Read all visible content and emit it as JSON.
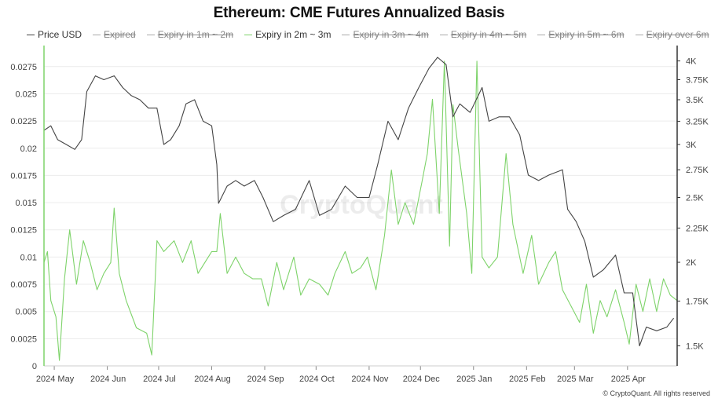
{
  "chart_data": {
    "type": "line",
    "title": "Ethereum: CME Futures Annualized Basis",
    "watermark": "CryptoQuant",
    "credit": "© CryptoQuant. All rights reserved",
    "legend": [
      {
        "name": "Price USD",
        "color": "#444444",
        "visible": true
      },
      {
        "name": "Expired",
        "color": "#666666",
        "visible": false
      },
      {
        "name": "Expiry in 1m ~ 2m",
        "color": "#666666",
        "visible": false
      },
      {
        "name": "Expiry in 2m ~ 3m",
        "color": "#7ed36a",
        "visible": true
      },
      {
        "name": "Expiry in 3m ~ 4m",
        "color": "#666666",
        "visible": false
      },
      {
        "name": "Expiry in 4m ~ 5m",
        "color": "#666666",
        "visible": false
      },
      {
        "name": "Expiry in 5m ~ 6m",
        "color": "#666666",
        "visible": false
      },
      {
        "name": "Expiry over 6m",
        "color": "#666666",
        "visible": false
      }
    ],
    "x_ticks": [
      "2024 May",
      "2024 Jun",
      "2024 Jul",
      "2024 Aug",
      "2024 Sep",
      "2024 Oct",
      "2024 Nov",
      "2024 Dec",
      "2025 Jan",
      "2025 Feb",
      "2025 Mar",
      "2025 Apr"
    ],
    "x_range": [
      "2024-04-25",
      "2025-04-30"
    ],
    "y_left": {
      "range": [
        0,
        0.029
      ],
      "ticks": [
        0,
        0.0025,
        0.005,
        0.0075,
        0.01,
        0.0125,
        0.015,
        0.0175,
        0.02,
        0.0225,
        0.025,
        0.0275
      ],
      "tick_labels": [
        "0",
        "0.0025",
        "0.005",
        "0.0075",
        "0.01",
        "0.0125",
        "0.015",
        "0.0175",
        "0.02",
        "0.0225",
        "0.025",
        "0.0275"
      ]
    },
    "y_right": {
      "scale": "log",
      "range": [
        1400,
        4150
      ],
      "ticks": [
        1500,
        1750,
        2000,
        2250,
        2500,
        2750,
        3000,
        3250,
        3500,
        3750,
        4000
      ],
      "tick_labels": [
        "1.5K",
        "1.75K",
        "2K",
        "2.25K",
        "2.5K",
        "2.75K",
        "3K",
        "3.25K",
        "3.5K",
        "3.75K",
        "4K"
      ]
    },
    "grid": true,
    "series": [
      {
        "name": "Price USD",
        "axis": "right",
        "color": "#444444",
        "points": [
          [
            "2024-04-25",
            3150
          ],
          [
            "2024-04-29",
            3200
          ],
          [
            "2024-05-03",
            3050
          ],
          [
            "2024-05-08",
            3000
          ],
          [
            "2024-05-13",
            2950
          ],
          [
            "2024-05-17",
            3050
          ],
          [
            "2024-05-20",
            3600
          ],
          [
            "2024-05-25",
            3800
          ],
          [
            "2024-05-30",
            3750
          ],
          [
            "2024-06-05",
            3800
          ],
          [
            "2024-06-10",
            3650
          ],
          [
            "2024-06-15",
            3550
          ],
          [
            "2024-06-20",
            3500
          ],
          [
            "2024-06-25",
            3400
          ],
          [
            "2024-06-30",
            3400
          ],
          [
            "2024-07-04",
            3000
          ],
          [
            "2024-07-08",
            3050
          ],
          [
            "2024-07-13",
            3200
          ],
          [
            "2024-07-17",
            3450
          ],
          [
            "2024-07-22",
            3500
          ],
          [
            "2024-07-27",
            3250
          ],
          [
            "2024-08-01",
            3200
          ],
          [
            "2024-08-04",
            2800
          ],
          [
            "2024-08-05",
            2450
          ],
          [
            "2024-08-10",
            2600
          ],
          [
            "2024-08-15",
            2650
          ],
          [
            "2024-08-20",
            2600
          ],
          [
            "2024-08-26",
            2650
          ],
          [
            "2024-08-31",
            2500
          ],
          [
            "2024-09-06",
            2300
          ],
          [
            "2024-09-12",
            2350
          ],
          [
            "2024-09-19",
            2400
          ],
          [
            "2024-09-27",
            2650
          ],
          [
            "2024-10-03",
            2350
          ],
          [
            "2024-10-10",
            2400
          ],
          [
            "2024-10-18",
            2600
          ],
          [
            "2024-10-25",
            2500
          ],
          [
            "2024-11-01",
            2500
          ],
          [
            "2024-11-06",
            2800
          ],
          [
            "2024-11-12",
            3250
          ],
          [
            "2024-11-18",
            3050
          ],
          [
            "2024-11-24",
            3400
          ],
          [
            "2024-11-30",
            3650
          ],
          [
            "2024-12-06",
            3900
          ],
          [
            "2024-12-11",
            4050
          ],
          [
            "2024-12-16",
            3950
          ],
          [
            "2024-12-20",
            3300
          ],
          [
            "2024-12-24",
            3450
          ],
          [
            "2024-12-30",
            3350
          ],
          [
            "2025-01-06",
            3650
          ],
          [
            "2025-01-10",
            3250
          ],
          [
            "2025-01-16",
            3300
          ],
          [
            "2025-01-22",
            3300
          ],
          [
            "2025-01-28",
            3100
          ],
          [
            "2025-02-02",
            2700
          ],
          [
            "2025-02-08",
            2650
          ],
          [
            "2025-02-14",
            2700
          ],
          [
            "2025-02-22",
            2750
          ],
          [
            "2025-02-25",
            2400
          ],
          [
            "2025-03-02",
            2300
          ],
          [
            "2025-03-07",
            2150
          ],
          [
            "2025-03-12",
            1900
          ],
          [
            "2025-03-18",
            1950
          ],
          [
            "2025-03-25",
            2050
          ],
          [
            "2025-03-30",
            1800
          ],
          [
            "2025-04-04",
            1800
          ],
          [
            "2025-04-08",
            1500
          ],
          [
            "2025-04-12",
            1600
          ],
          [
            "2025-04-18",
            1580
          ],
          [
            "2025-04-24",
            1600
          ],
          [
            "2025-04-28",
            1650
          ]
        ]
      },
      {
        "name": "Expiry in 2m ~ 3m",
        "axis": "left",
        "color": "#7ed36a",
        "points": [
          [
            "2024-04-25",
            0.0095
          ],
          [
            "2024-04-27",
            0.0105
          ],
          [
            "2024-04-29",
            0.006
          ],
          [
            "2024-05-02",
            0.0045
          ],
          [
            "2024-05-04",
            0.0005
          ],
          [
            "2024-05-07",
            0.008
          ],
          [
            "2024-05-10",
            0.0125
          ],
          [
            "2024-05-14",
            0.0075
          ],
          [
            "2024-05-18",
            0.0115
          ],
          [
            "2024-05-22",
            0.0095
          ],
          [
            "2024-05-26",
            0.007
          ],
          [
            "2024-05-30",
            0.0085
          ],
          [
            "2024-06-03",
            0.0095
          ],
          [
            "2024-06-05",
            0.0145
          ],
          [
            "2024-06-08",
            0.0085
          ],
          [
            "2024-06-12",
            0.006
          ],
          [
            "2024-06-18",
            0.0035
          ],
          [
            "2024-06-24",
            0.003
          ],
          [
            "2024-06-27",
            0.001
          ],
          [
            "2024-06-30",
            0.0115
          ],
          [
            "2024-07-04",
            0.0105
          ],
          [
            "2024-07-10",
            0.0115
          ],
          [
            "2024-07-15",
            0.0095
          ],
          [
            "2024-07-20",
            0.0115
          ],
          [
            "2024-07-24",
            0.0085
          ],
          [
            "2024-07-28",
            0.0095
          ],
          [
            "2024-08-01",
            0.0105
          ],
          [
            "2024-08-04",
            0.0105
          ],
          [
            "2024-08-06",
            0.014
          ],
          [
            "2024-08-10",
            0.0085
          ],
          [
            "2024-08-15",
            0.01
          ],
          [
            "2024-08-20",
            0.0085
          ],
          [
            "2024-08-25",
            0.008
          ],
          [
            "2024-08-30",
            0.008
          ],
          [
            "2024-09-03",
            0.0055
          ],
          [
            "2024-09-08",
            0.0095
          ],
          [
            "2024-09-12",
            0.007
          ],
          [
            "2024-09-18",
            0.01
          ],
          [
            "2024-09-22",
            0.0065
          ],
          [
            "2024-09-27",
            0.008
          ],
          [
            "2024-10-03",
            0.0075
          ],
          [
            "2024-10-08",
            0.0065
          ],
          [
            "2024-10-12",
            0.0085
          ],
          [
            "2024-10-18",
            0.0105
          ],
          [
            "2024-10-22",
            0.0085
          ],
          [
            "2024-10-27",
            0.009
          ],
          [
            "2024-10-31",
            0.01
          ],
          [
            "2024-11-05",
            0.007
          ],
          [
            "2024-11-10",
            0.012
          ],
          [
            "2024-11-14",
            0.018
          ],
          [
            "2024-11-18",
            0.013
          ],
          [
            "2024-11-22",
            0.015
          ],
          [
            "2024-11-27",
            0.013
          ],
          [
            "2024-12-02",
            0.017
          ],
          [
            "2024-12-05",
            0.0195
          ],
          [
            "2024-12-08",
            0.0245
          ],
          [
            "2024-12-12",
            0.014
          ],
          [
            "2024-12-15",
            0.028
          ],
          [
            "2024-12-18",
            0.011
          ],
          [
            "2024-12-20",
            0.024
          ],
          [
            "2024-12-23",
            0.02
          ],
          [
            "2024-12-28",
            0.014
          ],
          [
            "2024-12-31",
            0.0085
          ],
          [
            "2025-01-03",
            0.028
          ],
          [
            "2025-01-06",
            0.01
          ],
          [
            "2025-01-10",
            0.009
          ],
          [
            "2025-01-15",
            0.01
          ],
          [
            "2025-01-20",
            0.0195
          ],
          [
            "2025-01-24",
            0.013
          ],
          [
            "2025-01-30",
            0.0085
          ],
          [
            "2025-02-04",
            0.012
          ],
          [
            "2025-02-08",
            0.0075
          ],
          [
            "2025-02-14",
            0.0095
          ],
          [
            "2025-02-18",
            0.0105
          ],
          [
            "2025-02-22",
            0.007
          ],
          [
            "2025-02-27",
            0.0055
          ],
          [
            "2025-03-04",
            0.004
          ],
          [
            "2025-03-08",
            0.0075
          ],
          [
            "2025-03-12",
            0.003
          ],
          [
            "2025-03-16",
            0.006
          ],
          [
            "2025-03-20",
            0.0045
          ],
          [
            "2025-03-25",
            0.007
          ],
          [
            "2025-03-30",
            0.004
          ],
          [
            "2025-04-02",
            0.002
          ],
          [
            "2025-04-06",
            0.0075
          ],
          [
            "2025-04-10",
            0.005
          ],
          [
            "2025-04-14",
            0.008
          ],
          [
            "2025-04-18",
            0.005
          ],
          [
            "2025-04-22",
            0.008
          ],
          [
            "2025-04-26",
            0.0065
          ],
          [
            "2025-04-30",
            0.006
          ]
        ]
      }
    ]
  }
}
